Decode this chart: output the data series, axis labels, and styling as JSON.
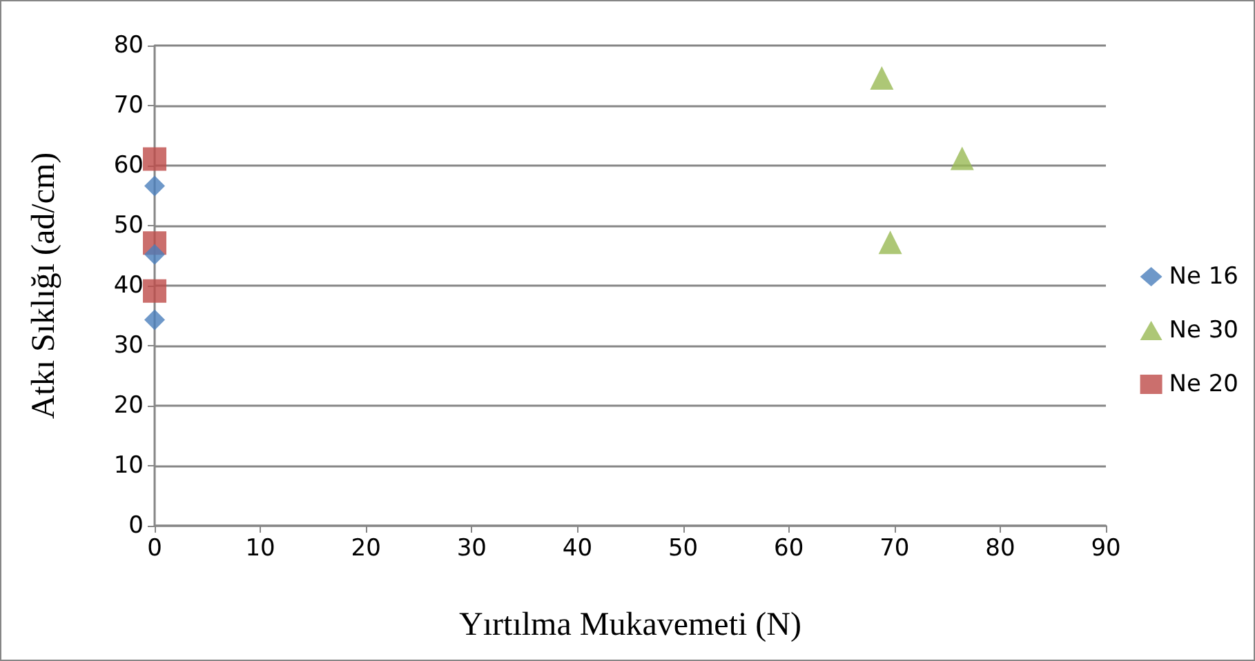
{
  "chart_data": {
    "type": "scatter",
    "xlabel": "Yırtılma Mukavemeti (N)",
    "ylabel": "Atkı Sıklığı (ad/cm)",
    "xlim": [
      0,
      90
    ],
    "xticks": [
      0,
      10,
      20,
      30,
      40,
      50,
      60,
      70,
      80,
      90
    ],
    "ylim": [
      0,
      80
    ],
    "yticks": [
      0,
      10,
      20,
      30,
      40,
      50,
      60,
      70,
      80
    ],
    "grid": "y",
    "legend": "right",
    "series": [
      {
        "name": "Ne 16",
        "color": "#4a7ebb",
        "marker": "diamond",
        "x": [
          0,
          0,
          0
        ],
        "values": [
          56.6,
          45.2,
          34.3
        ]
      },
      {
        "name": "Ne 30",
        "color": "#98b954",
        "marker": "triangle",
        "x": [
          68.8,
          76.4,
          69.6
        ],
        "values": [
          74.6,
          61.2,
          47.2
        ]
      },
      {
        "name": "Ne 20",
        "color": "#be4b48",
        "marker": "square",
        "x": [
          0,
          0,
          0
        ],
        "values": [
          61.1,
          47.1,
          39.1
        ]
      }
    ]
  }
}
